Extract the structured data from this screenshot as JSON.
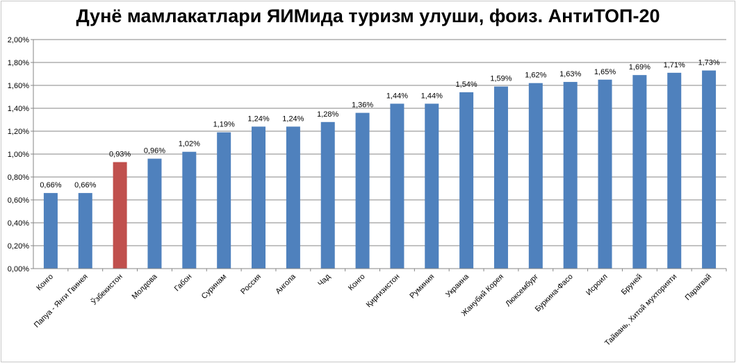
{
  "chart_data": {
    "type": "bar",
    "title": "Дунё мамлакатлари ЯИМида туризм улуши, фоиз. АнтиТОП-20",
    "xlabel": "",
    "ylabel": "",
    "ylim": [
      0,
      2.0
    ],
    "yticks": [
      "0,00%",
      "0,20%",
      "0,40%",
      "0,60%",
      "0,80%",
      "1,00%",
      "1,20%",
      "1,40%",
      "1,60%",
      "1,80%",
      "2,00%"
    ],
    "grid": true,
    "categories": [
      "Конго",
      "Папуа - Янги Гвинея",
      "Ўзбекистон",
      "Молдова",
      "Габон",
      "Суринам",
      "Россия",
      "Ангола",
      "Чад",
      "Конго",
      "Қирғизистон",
      "Руминия",
      "Украина",
      "Жанубий Корея",
      "Люксембург",
      "Буркина-Фасо",
      "Исроил",
      "Бруней",
      "Тайвань, Хитой мухторияти",
      "Парагвай"
    ],
    "values": [
      0.66,
      0.66,
      0.93,
      0.96,
      1.02,
      1.19,
      1.24,
      1.24,
      1.28,
      1.36,
      1.44,
      1.44,
      1.54,
      1.59,
      1.62,
      1.63,
      1.65,
      1.69,
      1.71,
      1.73
    ],
    "value_labels": [
      "0,66%",
      "0,66%",
      "0,93%",
      "0,96%",
      "1,02%",
      "1,19%",
      "1,24%",
      "1,24%",
      "1,28%",
      "1,36%",
      "1,44%",
      "1,44%",
      "1,54%",
      "1,59%",
      "1,62%",
      "1,63%",
      "1,65%",
      "1,69%",
      "1,71%",
      "1,73%"
    ],
    "highlight_index": 2,
    "colors": {
      "bar": "#4f81bd",
      "highlight": "#c0504d",
      "grid": "#868686",
      "axis": "#868686"
    }
  }
}
